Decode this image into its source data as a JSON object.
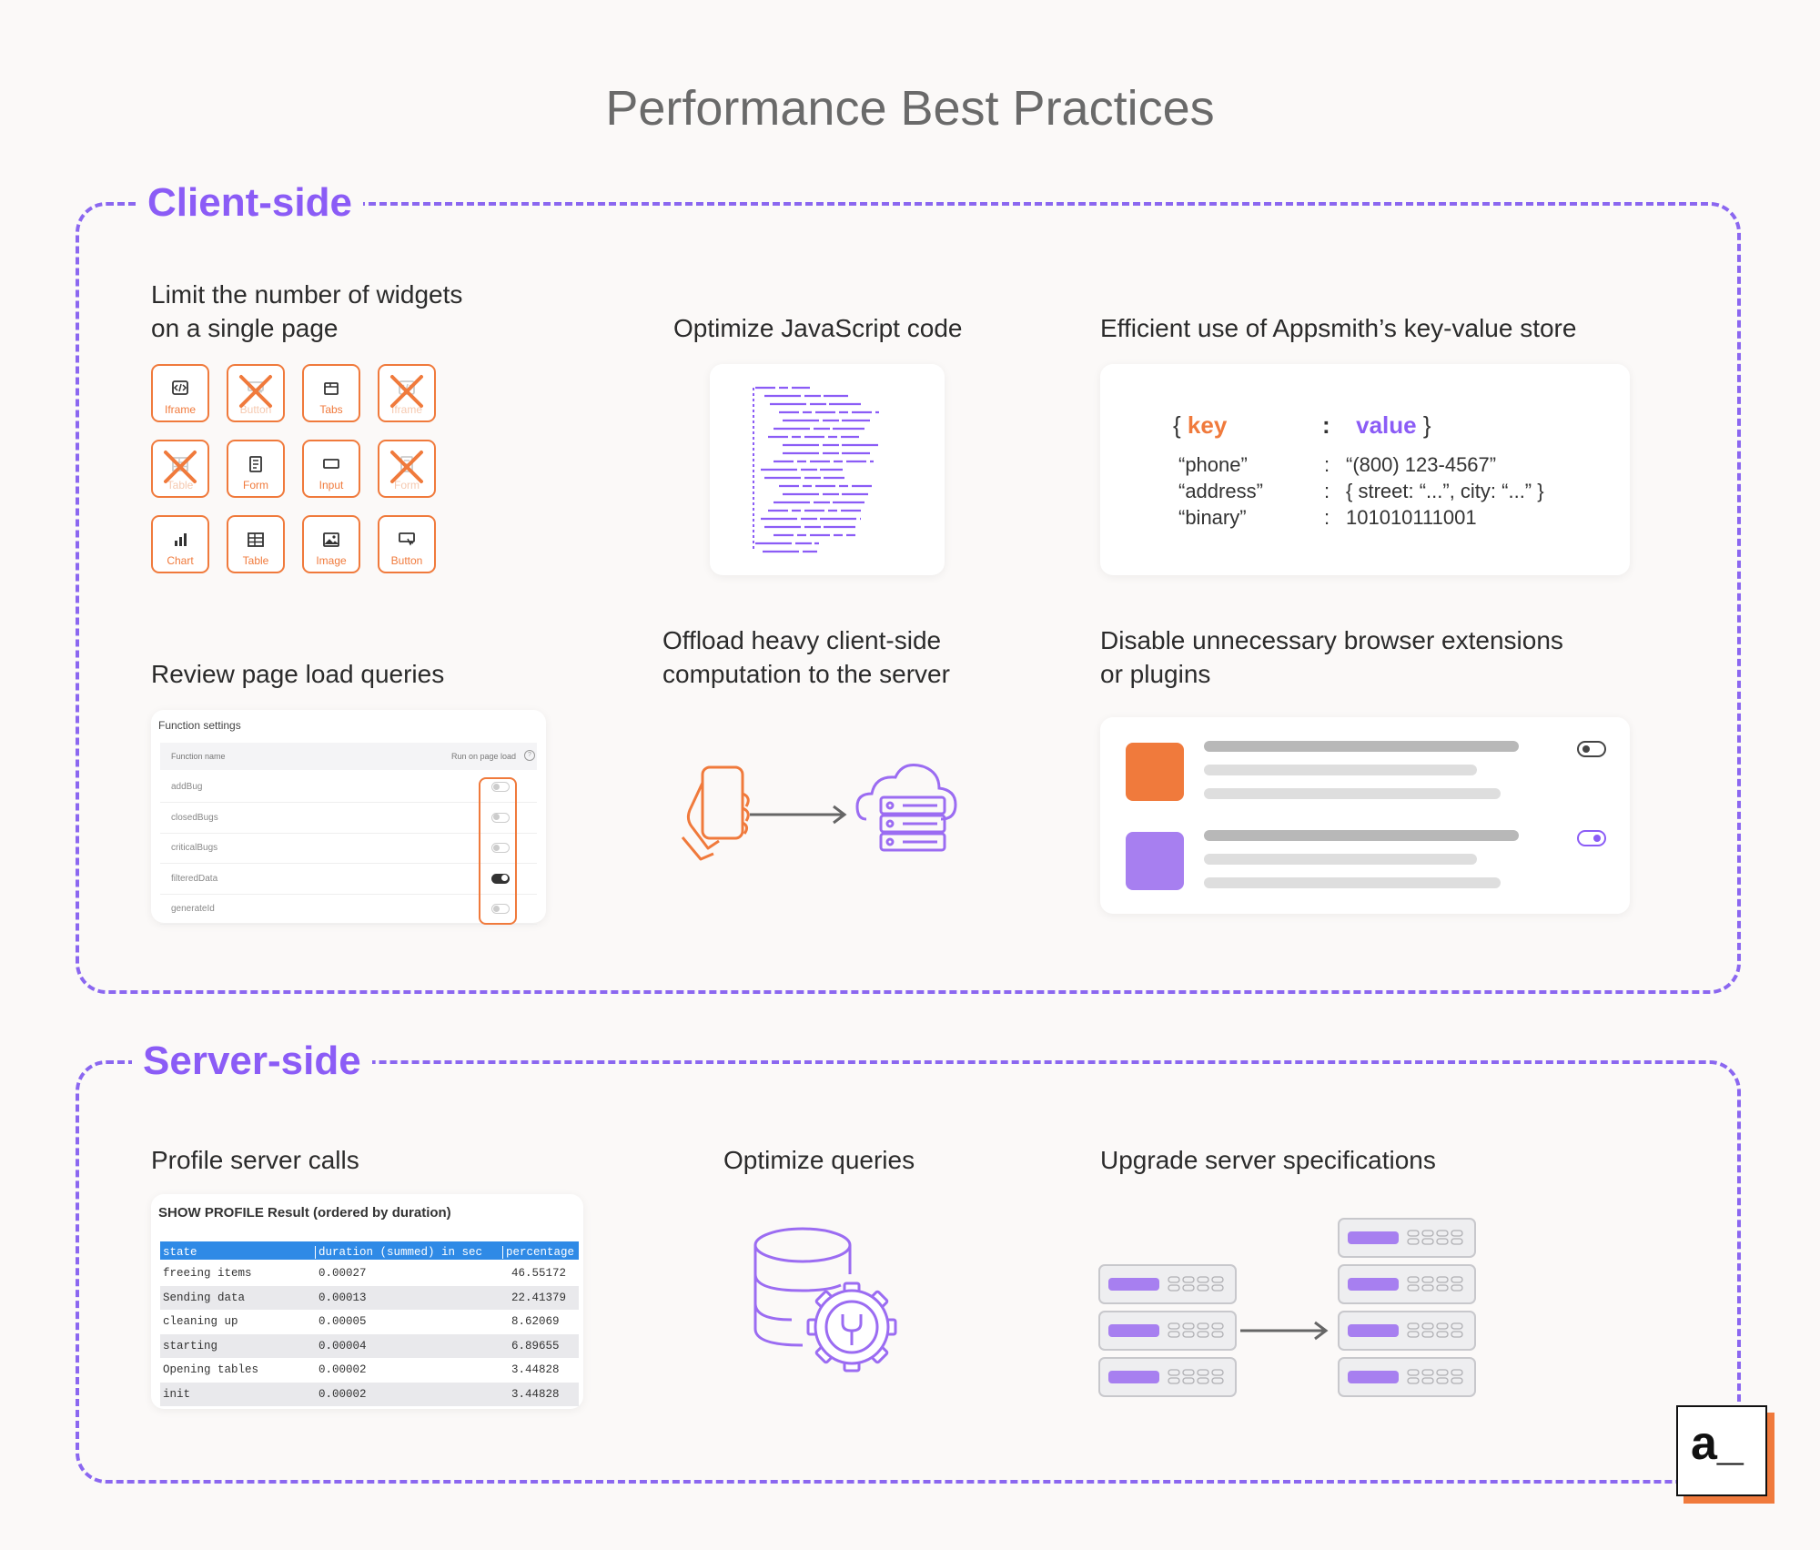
{
  "title": "Performance Best Practices",
  "client": {
    "title": "Client-side",
    "widgets": {
      "heading": [
        "Limit the number of widgets",
        "on a single page"
      ],
      "items": [
        {
          "label": "Iframe",
          "icon": "code-icon",
          "crossed": false
        },
        {
          "label": "Button",
          "icon": "button-icon",
          "crossed": true
        },
        {
          "label": "Tabs",
          "icon": "tabs-icon",
          "crossed": false
        },
        {
          "label": "Iframe",
          "icon": "code-icon",
          "crossed": true
        },
        {
          "label": "Table",
          "icon": "table-icon",
          "crossed": true
        },
        {
          "label": "Form",
          "icon": "form-icon",
          "crossed": false
        },
        {
          "label": "Input",
          "icon": "input-icon",
          "crossed": false
        },
        {
          "label": "Form",
          "icon": "form-icon",
          "crossed": true
        },
        {
          "label": "Chart",
          "icon": "chart-icon",
          "crossed": false
        },
        {
          "label": "Table",
          "icon": "table-icon",
          "crossed": false
        },
        {
          "label": "Image",
          "icon": "image-icon",
          "crossed": false
        },
        {
          "label": "Button",
          "icon": "button-icon",
          "crossed": false
        }
      ]
    },
    "js": {
      "heading": "Optimize JavaScript code"
    },
    "kv": {
      "heading": "Efficient use of Appsmith’s key-value store",
      "open": "{",
      "key": "key",
      "sep": ":",
      "value": "value",
      "close": "}",
      "rows": [
        {
          "k": "“phone”",
          "v": "“(800) 123-4567”"
        },
        {
          "k": "“address”",
          "v": "{ street: “...”, city: “...” }"
        },
        {
          "k": "“binary”",
          "v": "101010111001"
        }
      ]
    },
    "queries": {
      "heading": "Review page load queries",
      "card_title": "Function settings",
      "col_name": "Function name",
      "col_run": "Run on page load",
      "rows": [
        {
          "name": "addBug",
          "on": false
        },
        {
          "name": "closedBugs",
          "on": false
        },
        {
          "name": "criticalBugs",
          "on": false
        },
        {
          "name": "filteredData",
          "on": true
        },
        {
          "name": "generateId",
          "on": false
        }
      ]
    },
    "offload": {
      "heading": [
        "Offload heavy client-side",
        "computation to the server"
      ]
    },
    "extensions": {
      "heading": [
        "Disable unnecessary browser extensions",
        "or plugins"
      ],
      "items": [
        {
          "color": "#f07a3c",
          "enabled": false
        },
        {
          "color": "#a77ff0",
          "enabled": true
        }
      ]
    }
  },
  "server": {
    "title": "Server-side",
    "profile": {
      "heading": "Profile server calls",
      "card_title": "SHOW PROFILE Result (ordered by duration)",
      "columns": [
        "state",
        "duration (summed) in sec",
        "percentage"
      ],
      "rows": [
        {
          "state": "freeing items",
          "duration": "0.00027",
          "pct": "46.55172"
        },
        {
          "state": "Sending data",
          "duration": "0.00013",
          "pct": "22.41379"
        },
        {
          "state": "cleaning up",
          "duration": "0.00005",
          "pct": "8.62069"
        },
        {
          "state": "starting",
          "duration": "0.00004",
          "pct": "6.89655"
        },
        {
          "state": "Opening tables",
          "duration": "0.00002",
          "pct": "3.44828"
        },
        {
          "state": "init",
          "duration": "0.00002",
          "pct": "3.44828"
        }
      ]
    },
    "optimize": {
      "heading": "Optimize queries"
    },
    "upgrade": {
      "heading": "Upgrade server specifications"
    }
  },
  "logo": {
    "text": "a_"
  },
  "colors": {
    "purple": "#8b5cf6",
    "orange": "#f07a3c",
    "blue": "#2f8ae6"
  }
}
